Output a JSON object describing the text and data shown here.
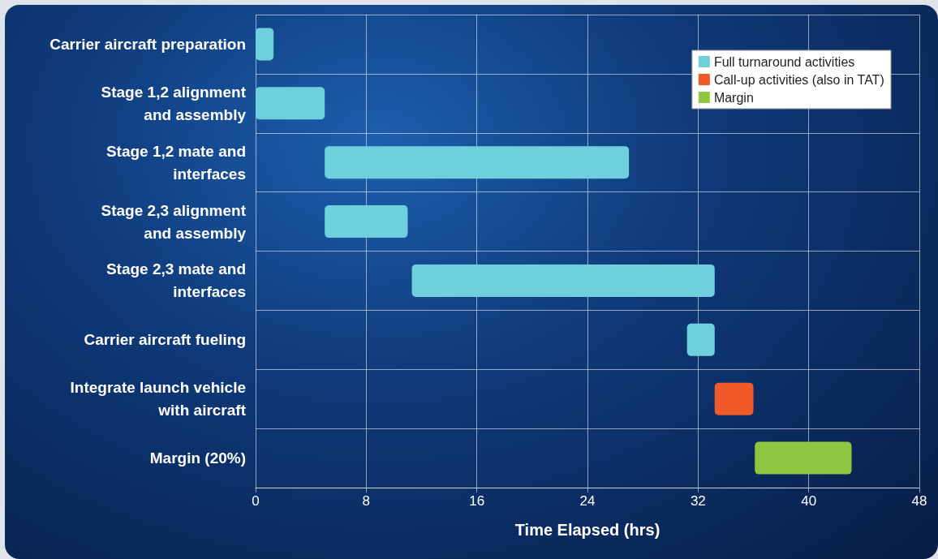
{
  "chart_data": {
    "type": "bar",
    "orientation": "horizontal",
    "xlabel": "Time Elapsed (hrs)",
    "categories": [
      "Carrier aircraft preparation",
      "Stage 1,2 alignment\nand assembly",
      "Stage 1,2 mate and\ninterfaces",
      "Stage 2,3 alignment\nand assembly",
      "Stage 2,3 mate and\ninterfaces",
      "Carrier aircraft fueling",
      "Integrate launch vehicle\nwith aircraft",
      "Margin (20%)"
    ],
    "series": [
      {
        "name": "Full turnaround activities",
        "color": "#6fd0dd",
        "base": [
          0,
          0,
          5,
          5,
          11.3,
          31.2,
          null,
          null
        ],
        "values": [
          1.3,
          5,
          22,
          6,
          21.9,
          2,
          null,
          null
        ]
      },
      {
        "name": "Call-up activities (also in TAT)",
        "color": "#f05a28",
        "base": [
          null,
          null,
          null,
          null,
          null,
          null,
          33.2,
          null
        ],
        "values": [
          null,
          null,
          null,
          null,
          null,
          null,
          2.8,
          null
        ]
      },
      {
        "name": "Margin",
        "color": "#8dc63f",
        "base": [
          null,
          null,
          null,
          null,
          null,
          null,
          null,
          36.1
        ],
        "values": [
          null,
          null,
          null,
          null,
          null,
          null,
          null,
          7
        ]
      }
    ],
    "xlim": [
      0,
      48
    ],
    "xticks": [
      0,
      8,
      16,
      24,
      32,
      40,
      48
    ],
    "grid": true,
    "legend": "top right"
  }
}
